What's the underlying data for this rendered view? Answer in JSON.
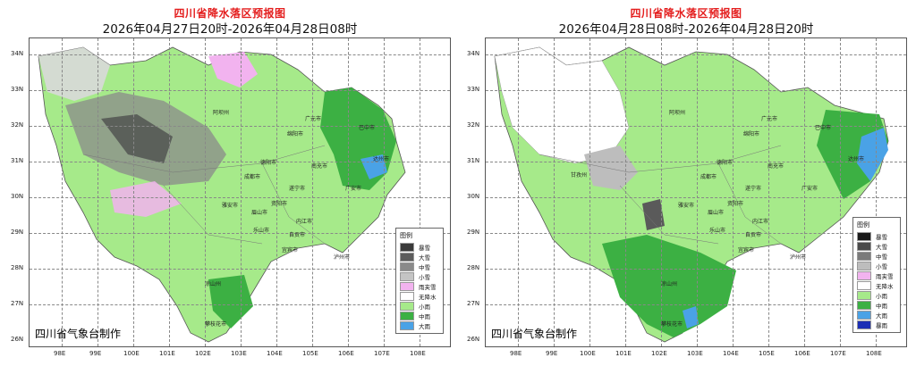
{
  "panels": [
    {
      "title": "四川省降水落区预报图",
      "subtitle": "2026年04月27日20时-2026年04月28日08时",
      "credit": "四川省气象台制作",
      "legend": {
        "title": "图例",
        "items": [
          {
            "label": "暴雪",
            "color": "#3a3a3a"
          },
          {
            "label": "大雪",
            "color": "#5c5c5c"
          },
          {
            "label": "中雪",
            "color": "#8a8a8a"
          },
          {
            "label": "小雪",
            "color": "#c4c4c4"
          },
          {
            "label": "雨夹雪",
            "color": "#f2b3ef"
          },
          {
            "label": "无降水",
            "color": "#ffffff"
          },
          {
            "label": "小雨",
            "color": "#a6ea8a"
          },
          {
            "label": "中雨",
            "color": "#3cb043"
          },
          {
            "label": "大雨",
            "color": "#4aa2e6"
          }
        ]
      },
      "cities": [
        "阿坝州",
        "巴中市",
        "广元市",
        "绵阳市",
        "达州市",
        "德阳市",
        "成都市",
        "南充市",
        "广安市",
        "遂宁市",
        "雅安市",
        "资阳市",
        "眉山市",
        "内江市",
        "乐山市",
        "自贡市",
        "宜宾市",
        "泸州市",
        "凉山州",
        "攀枝花市"
      ]
    },
    {
      "title": "四川省降水落区预报图",
      "subtitle": "2026年04月28日08时-2026年04月28日20时",
      "credit": "四川省气象台制作",
      "legend": {
        "title": "图例",
        "items": [
          {
            "label": "暴雪",
            "color": "#1a1a1a"
          },
          {
            "label": "大雪",
            "color": "#4a4a4a"
          },
          {
            "label": "中雪",
            "color": "#7a7a7a"
          },
          {
            "label": "小雪",
            "color": "#bdbdbd"
          },
          {
            "label": "雨夹雪",
            "color": "#f2b3ef"
          },
          {
            "label": "无降水",
            "color": "#ffffff"
          },
          {
            "label": "小雨",
            "color": "#a6ea8a"
          },
          {
            "label": "中雨",
            "color": "#3cb043"
          },
          {
            "label": "大雨",
            "color": "#4aa2e6"
          },
          {
            "label": "暴雨",
            "color": "#1c2fb5"
          }
        ]
      },
      "cities": [
        "阿坝州",
        "甘孜州",
        "巴中市",
        "广元市",
        "绵阳市",
        "达州市",
        "德阳市",
        "成都市",
        "南充市",
        "广安市",
        "遂宁市",
        "雅安市",
        "资阳市",
        "眉山市",
        "内江市",
        "乐山市",
        "自贡市",
        "宜宾市",
        "泸州市",
        "凉山州",
        "攀枝花市"
      ]
    }
  ],
  "axes": {
    "lat_labels": [
      "34N",
      "33N",
      "32N",
      "31N",
      "30N",
      "29N",
      "28N",
      "27N",
      "26N"
    ],
    "lon_labels": [
      "98E",
      "99E",
      "100E",
      "101E",
      "102E",
      "103E",
      "104E",
      "105E",
      "106E",
      "107E",
      "108E"
    ]
  }
}
